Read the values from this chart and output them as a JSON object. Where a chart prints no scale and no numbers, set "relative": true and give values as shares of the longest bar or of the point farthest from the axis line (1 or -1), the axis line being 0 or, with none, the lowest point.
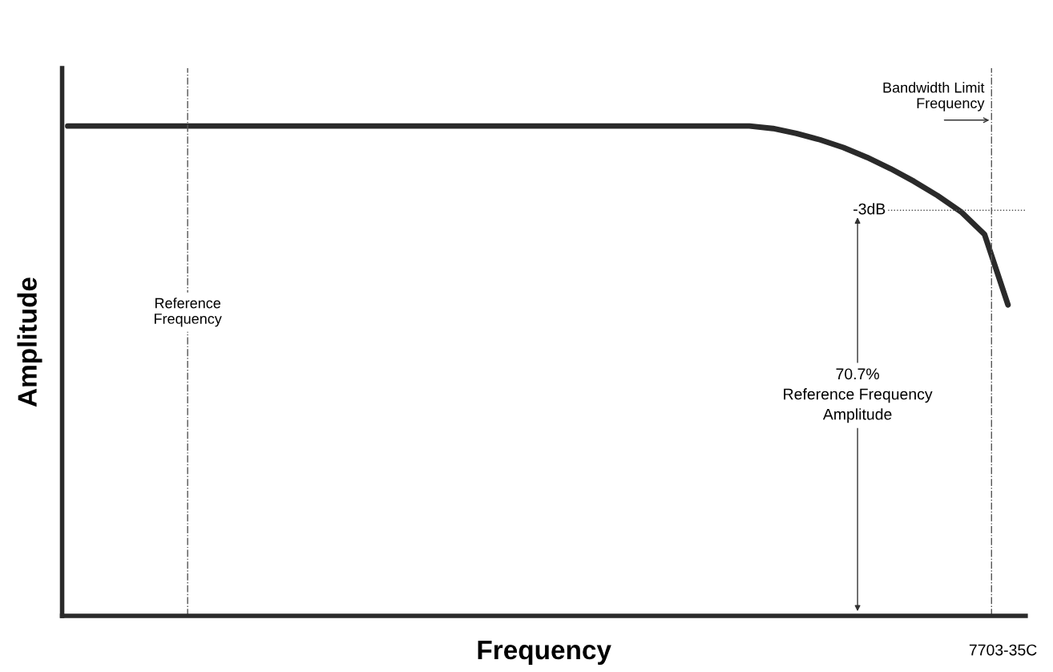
{
  "chart_data": {
    "type": "line",
    "relative": true,
    "xlabel": "Frequency",
    "ylabel": "Amplitude",
    "categories": [
      null,
      null,
      null,
      null,
      null,
      null,
      null,
      null,
      null,
      null,
      null,
      null,
      null,
      null,
      null,
      null,
      null,
      null,
      null,
      null,
      null,
      null,
      null,
      null,
      null,
      null,
      null,
      null,
      null,
      null,
      null,
      null,
      null,
      null,
      null,
      null,
      null,
      null,
      null,
      null,
      null
    ],
    "series": [
      {
        "color": "#2a2a2a",
        "values": [
          1,
          1,
          1,
          1,
          1,
          1,
          1,
          1,
          1,
          1,
          1,
          1,
          1,
          1,
          1,
          1,
          1,
          1,
          1,
          1,
          1,
          1,
          1,
          1,
          1,
          1,
          1,
          1,
          1,
          1,
          0.995,
          0.985,
          0.972,
          0.956,
          0.936,
          0.913,
          0.887,
          0.858,
          0.825,
          0.779,
          0.635
        ]
      }
    ],
    "ref_lines": [
      {
        "axis": "y",
        "value": 0.828,
        "label": "-3dB",
        "color": "#555555",
        "line_style": "dotted"
      }
    ],
    "annotations": [
      "Reference\nFrequency",
      "Bandwidth Limit\nFrequency",
      "70.7%\nReference Frequency\nAmplitude",
      "7703-35C"
    ],
    "grid": false,
    "legend": false,
    "marker": "none",
    "line_style": "solid"
  }
}
